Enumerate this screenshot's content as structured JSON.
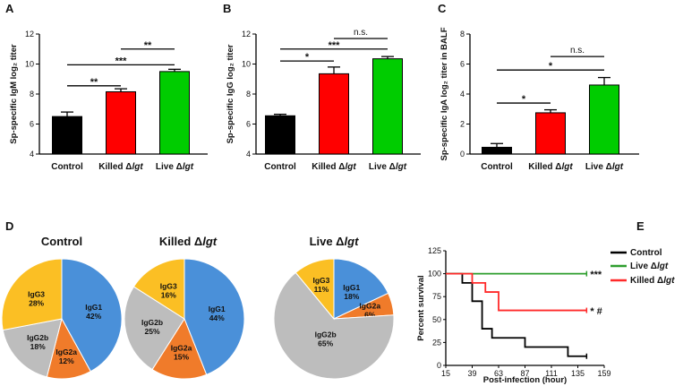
{
  "chart_data": [
    {
      "panel": "A",
      "type": "bar",
      "ylabel": "Sp-specific IgM log₂ titer",
      "categories": [
        {
          "name": "Control",
          "suffix": ""
        },
        {
          "name": "Killed Δ",
          "suffix": "lgt"
        },
        {
          "name": "Live Δ",
          "suffix": "lgt"
        }
      ],
      "values": [
        6.5,
        8.15,
        9.5
      ],
      "errors": [
        0.3,
        0.2,
        0.15
      ],
      "colors": [
        "#000000",
        "#ff0000",
        "#00cc00"
      ],
      "ylim": [
        4,
        12
      ],
      "yticks": [
        4,
        6,
        8,
        10,
        12
      ],
      "significance": [
        {
          "from": 0,
          "to": 1,
          "label": "**",
          "y": 8.55
        },
        {
          "from": 0,
          "to": 2,
          "label": "***",
          "y": 9.95
        },
        {
          "from": 1,
          "to": 2,
          "label": "**",
          "y": 11.0
        }
      ]
    },
    {
      "panel": "B",
      "type": "bar",
      "ylabel": "Sp-specific IgG log₂ titer",
      "categories": [
        {
          "name": "Control",
          "suffix": ""
        },
        {
          "name": "Killed Δ",
          "suffix": "lgt"
        },
        {
          "name": "Live Δ",
          "suffix": "lgt"
        }
      ],
      "values": [
        6.55,
        9.35,
        10.35
      ],
      "errors": [
        0.1,
        0.45,
        0.15
      ],
      "colors": [
        "#000000",
        "#ff0000",
        "#00cc00"
      ],
      "ylim": [
        4,
        12
      ],
      "yticks": [
        4,
        6,
        8,
        10,
        12
      ],
      "significance": [
        {
          "from": 0,
          "to": 1,
          "label": "*",
          "y": 10.2
        },
        {
          "from": 0,
          "to": 2,
          "label": "***",
          "y": 11.0
        },
        {
          "from": 1,
          "to": 2,
          "label": "n.s.",
          "y": 11.7
        }
      ]
    },
    {
      "panel": "C",
      "type": "bar",
      "ylabel": "Sp-specific IgA log₂ titer in BALF",
      "categories": [
        {
          "name": "Control",
          "suffix": ""
        },
        {
          "name": "Killed Δ",
          "suffix": "lgt"
        },
        {
          "name": "Live Δ",
          "suffix": "lgt"
        }
      ],
      "values": [
        0.45,
        2.75,
        4.6
      ],
      "errors": [
        0.25,
        0.2,
        0.5
      ],
      "colors": [
        "#000000",
        "#ff0000",
        "#00cc00"
      ],
      "ylim": [
        0,
        8
      ],
      "yticks": [
        0,
        2,
        4,
        6,
        8
      ],
      "significance": [
        {
          "from": 0,
          "to": 1,
          "label": "*",
          "y": 3.4
        },
        {
          "from": 0,
          "to": 2,
          "label": "*",
          "y": 5.6
        },
        {
          "from": 1,
          "to": 2,
          "label": "n.s.",
          "y": 6.5
        }
      ]
    },
    {
      "panel": "D",
      "type": "pie",
      "pies": [
        {
          "title": "Control",
          "suffix": "",
          "slices": [
            {
              "name": "IgG1",
              "value": 42,
              "label": "42%",
              "color": "#4a90d9"
            },
            {
              "name": "IgG2a",
              "value": 12,
              "label": "12%",
              "color": "#f07b2a"
            },
            {
              "name": "IgG2b",
              "value": 18,
              "label": "18%",
              "color": "#bdbdbd"
            },
            {
              "name": "IgG3",
              "value": 28,
              "label": "28%",
              "color": "#fbbf24"
            }
          ]
        },
        {
          "title": "Killed Δ",
          "suffix": "lgt",
          "slices": [
            {
              "name": "IgG1",
              "value": 44,
              "label": "44%",
              "color": "#4a90d9"
            },
            {
              "name": "IgG2a",
              "value": 15,
              "label": "15%",
              "color": "#f07b2a"
            },
            {
              "name": "IgG2b",
              "value": 25,
              "label": "25%",
              "color": "#bdbdbd"
            },
            {
              "name": "IgG3",
              "value": 16,
              "label": "16%",
              "color": "#fbbf24"
            }
          ]
        },
        {
          "title": "Live Δ",
          "suffix": "lgt",
          "slices": [
            {
              "name": "IgG1",
              "value": 18,
              "label": "18%",
              "color": "#4a90d9"
            },
            {
              "name": "IgG2a",
              "value": 6,
              "label": "6%",
              "color": "#f07b2a"
            },
            {
              "name": "IgG2b",
              "value": 65,
              "label": "65%",
              "color": "#bdbdbd"
            },
            {
              "name": "IgG3",
              "value": 11,
              "label": "11%",
              "color": "#fbbf24"
            }
          ]
        }
      ]
    },
    {
      "panel": "E",
      "type": "line",
      "xlabel": "Post-infection (hour)",
      "ylabel": "Percent survival",
      "xlim": [
        15,
        159
      ],
      "ylim": [
        0,
        125
      ],
      "xticks": [
        15,
        39,
        63,
        87,
        111,
        135,
        159
      ],
      "yticks": [
        0,
        25,
        50,
        75,
        100,
        125
      ],
      "series": [
        {
          "name": "Control",
          "suffix": "",
          "color": "#000000",
          "annotation": "",
          "x": [
            15,
            30,
            30,
            39,
            39,
            48,
            48,
            57,
            57,
            87,
            87,
            126,
            126,
            143
          ],
          "y": [
            100,
            100,
            90,
            90,
            70,
            70,
            40,
            40,
            30,
            30,
            20,
            20,
            10,
            10
          ]
        },
        {
          "name": "Live Δ",
          "suffix": "lgt",
          "color": "#2e9e2e",
          "annotation": "***",
          "x": [
            15,
            143
          ],
          "y": [
            100,
            100
          ]
        },
        {
          "name": "Killed Δ",
          "suffix": "lgt",
          "color": "#ff2a2a",
          "annotation": "* #",
          "x": [
            15,
            39,
            39,
            51,
            51,
            63,
            63,
            143
          ],
          "y": [
            100,
            100,
            90,
            90,
            80,
            80,
            60,
            60
          ]
        }
      ]
    }
  ]
}
